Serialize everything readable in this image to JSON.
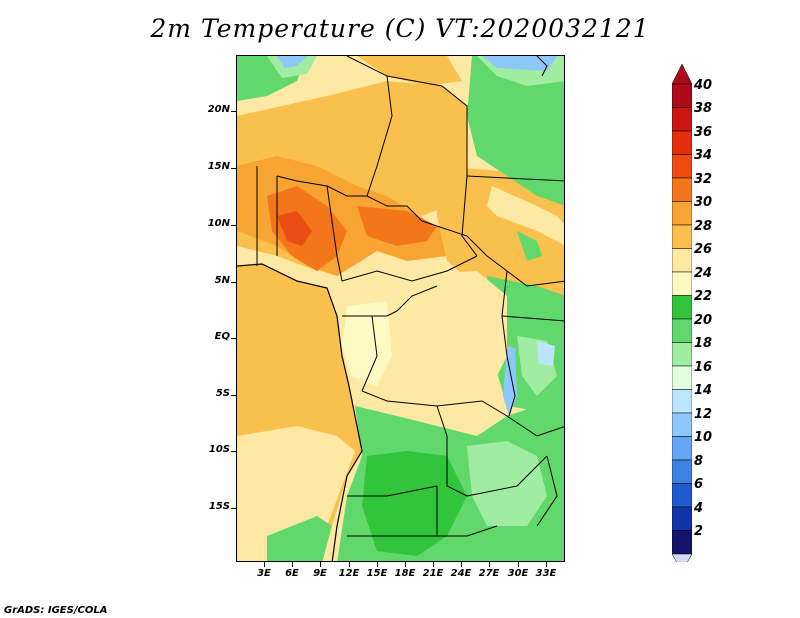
{
  "title": "2m Temperature (C) VT:2020032121",
  "credit": "GrADS: IGES/COLA",
  "lat_labels": [
    "20N",
    "15N",
    "10N",
    "5N",
    "EQ",
    "5S",
    "10S",
    "15S"
  ],
  "lon_labels": [
    "3E",
    "6E",
    "9E",
    "12E",
    "15E",
    "18E",
    "21E",
    "24E",
    "27E",
    "30E",
    "33E"
  ],
  "colorbar": {
    "labels": [
      "40",
      "38",
      "36",
      "34",
      "32",
      "30",
      "28",
      "26",
      "24",
      "22",
      "20",
      "18",
      "16",
      "14",
      "12",
      "10",
      "8",
      "6",
      "4",
      "2"
    ],
    "colors": [
      "#b0081c",
      "#cc1410",
      "#e42e0c",
      "#f04a10",
      "#f4761a",
      "#f8a432",
      "#fac04e",
      "#fde9a4",
      "#fffac4",
      "#32c43a",
      "#60d86c",
      "#a0eca0",
      "#e2fce0",
      "#bce6ff",
      "#8cc8fc",
      "#62a6f4",
      "#3c82e4",
      "#1e5ad0",
      "#1034a8",
      "#14146c"
    ],
    "low_color": "#d8d8f4"
  }
}
